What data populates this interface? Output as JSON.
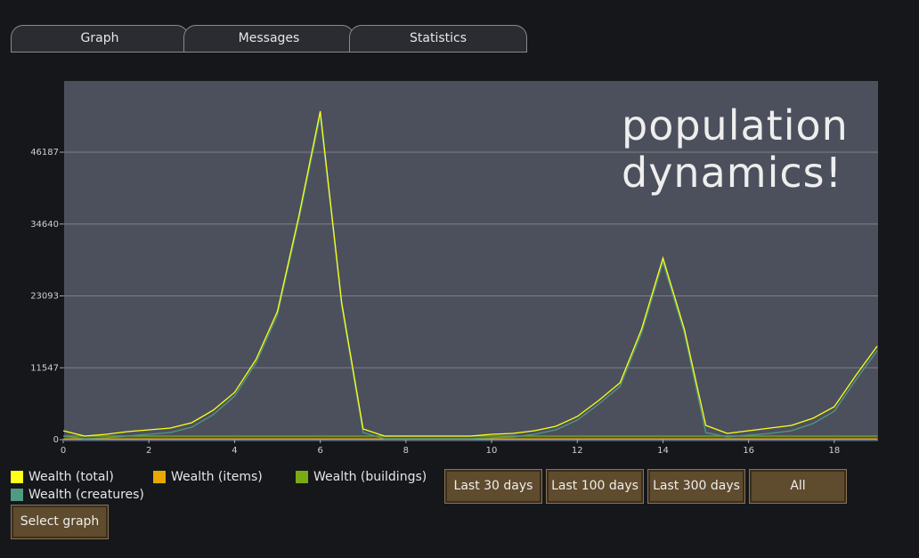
{
  "tabs": [
    "Graph",
    "Messages",
    "Statistics"
  ],
  "chart_data": {
    "type": "line",
    "annotation": "population dynamics!",
    "x": [
      0,
      0.5,
      1,
      1.5,
      2,
      2.5,
      3,
      3.5,
      4,
      4.5,
      5,
      5.5,
      6,
      6.5,
      7,
      7.5,
      8,
      8.5,
      9,
      9.5,
      10,
      10.5,
      11,
      11.5,
      12,
      12.5,
      13,
      13.5,
      14,
      14.5,
      15,
      15.5,
      16,
      16.5,
      17,
      17.5,
      18,
      18.5,
      19
    ],
    "xlim": [
      0,
      19
    ],
    "xticks": [
      0,
      2,
      4,
      6,
      8,
      10,
      12,
      14,
      16,
      18
    ],
    "ylim": [
      0,
      57630
    ],
    "yticks": [
      0,
      11547,
      23093,
      34640,
      46187
    ],
    "grid": true,
    "series": [
      {
        "name": "Wealth (total)",
        "color": "#ffff1a",
        "values": [
          1430,
          570,
          860,
          1290,
          1570,
          1860,
          2720,
          4720,
          7580,
          12870,
          20590,
          35890,
          52770,
          22020,
          1720,
          570,
          570,
          570,
          570,
          570,
          860,
          1000,
          1430,
          2150,
          3720,
          6290,
          9150,
          17730,
          29170,
          17730,
          2290,
          1000,
          1430,
          1860,
          2290,
          3430,
          5290,
          10300,
          15020
        ]
      },
      {
        "name": "Wealth (items)",
        "color": "#e8a800",
        "values": [
          100,
          100,
          100,
          100,
          100,
          100,
          100,
          100,
          100,
          100,
          100,
          100,
          100,
          100,
          100,
          100,
          100,
          100,
          100,
          100,
          100,
          100,
          100,
          100,
          100,
          100,
          100,
          100,
          100,
          100,
          100,
          100,
          100,
          100,
          100,
          100,
          100,
          100,
          100
        ]
      },
      {
        "name": "Wealth (buildings)",
        "color": "#7aab14",
        "values": [
          570,
          570,
          570,
          570,
          570,
          570,
          570,
          570,
          570,
          570,
          570,
          570,
          570,
          570,
          570,
          570,
          570,
          570,
          570,
          570,
          570,
          570,
          570,
          570,
          570,
          570,
          570,
          570,
          570,
          570,
          570,
          570,
          570,
          570,
          570,
          570,
          570,
          570,
          570
        ]
      },
      {
        "name": "Wealth (creatures)",
        "color": "#4f9a80",
        "values": [
          570,
          140,
          290,
          570,
          860,
          1140,
          2000,
          4000,
          7000,
          12300,
          20000,
          35300,
          52000,
          21500,
          1140,
          140,
          140,
          140,
          140,
          140,
          290,
          430,
          860,
          1570,
          3150,
          5700,
          8580,
          17100,
          28500,
          17100,
          1140,
          430,
          710,
          1000,
          1430,
          2570,
          4570,
          9580,
          14300
        ]
      }
    ]
  },
  "buttons": [
    "Last 30 days",
    "Last 100 days",
    "Last 300 days",
    "All"
  ],
  "select_button": "Select graph"
}
